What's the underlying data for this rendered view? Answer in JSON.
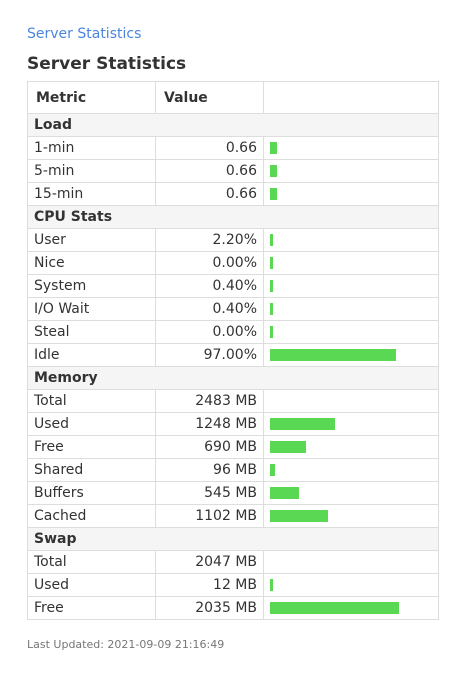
{
  "breadcrumb": "Server Statistics",
  "page_title": "Server Statistics",
  "columns": {
    "metric": "Metric",
    "value": "Value"
  },
  "sections": [
    {
      "title": "Load",
      "rows": [
        {
          "label": "1-min",
          "value": "0.66",
          "fraction": 0.05
        },
        {
          "label": "5-min",
          "value": "0.66",
          "fraction": 0.05
        },
        {
          "label": "15-min",
          "value": "0.66",
          "fraction": 0.05
        }
      ]
    },
    {
      "title": "CPU Stats",
      "rows": [
        {
          "label": "User",
          "value": "2.20%",
          "fraction": 0.022
        },
        {
          "label": "Nice",
          "value": "0.00%",
          "fraction": 0.0
        },
        {
          "label": "System",
          "value": "0.40%",
          "fraction": 0.004
        },
        {
          "label": "I/O Wait",
          "value": "0.40%",
          "fraction": 0.004
        },
        {
          "label": "Steal",
          "value": "0.00%",
          "fraction": 0.0
        },
        {
          "label": "Idle",
          "value": "97.00%",
          "fraction": 0.97
        }
      ]
    },
    {
      "title": "Memory",
      "rows": [
        {
          "label": "Total",
          "value": "2483 MB",
          "fraction": null
        },
        {
          "label": "Used",
          "value": "1248 MB",
          "fraction": 0.5026
        },
        {
          "label": "Free",
          "value": "690 MB",
          "fraction": 0.2779
        },
        {
          "label": "Shared",
          "value": "96 MB",
          "fraction": 0.0387
        },
        {
          "label": "Buffers",
          "value": "545 MB",
          "fraction": 0.2195
        },
        {
          "label": "Cached",
          "value": "1102 MB",
          "fraction": 0.4438
        }
      ]
    },
    {
      "title": "Swap",
      "rows": [
        {
          "label": "Total",
          "value": "2047 MB",
          "fraction": null
        },
        {
          "label": "Used",
          "value": "12 MB",
          "fraction": 0.0059
        },
        {
          "label": "Free",
          "value": "2035 MB",
          "fraction": 0.9941
        }
      ]
    }
  ],
  "last_updated": "Last Updated: 2021-09-09 21:16:49",
  "colors": {
    "bar": "#5ad853",
    "link": "#4a86e0"
  }
}
